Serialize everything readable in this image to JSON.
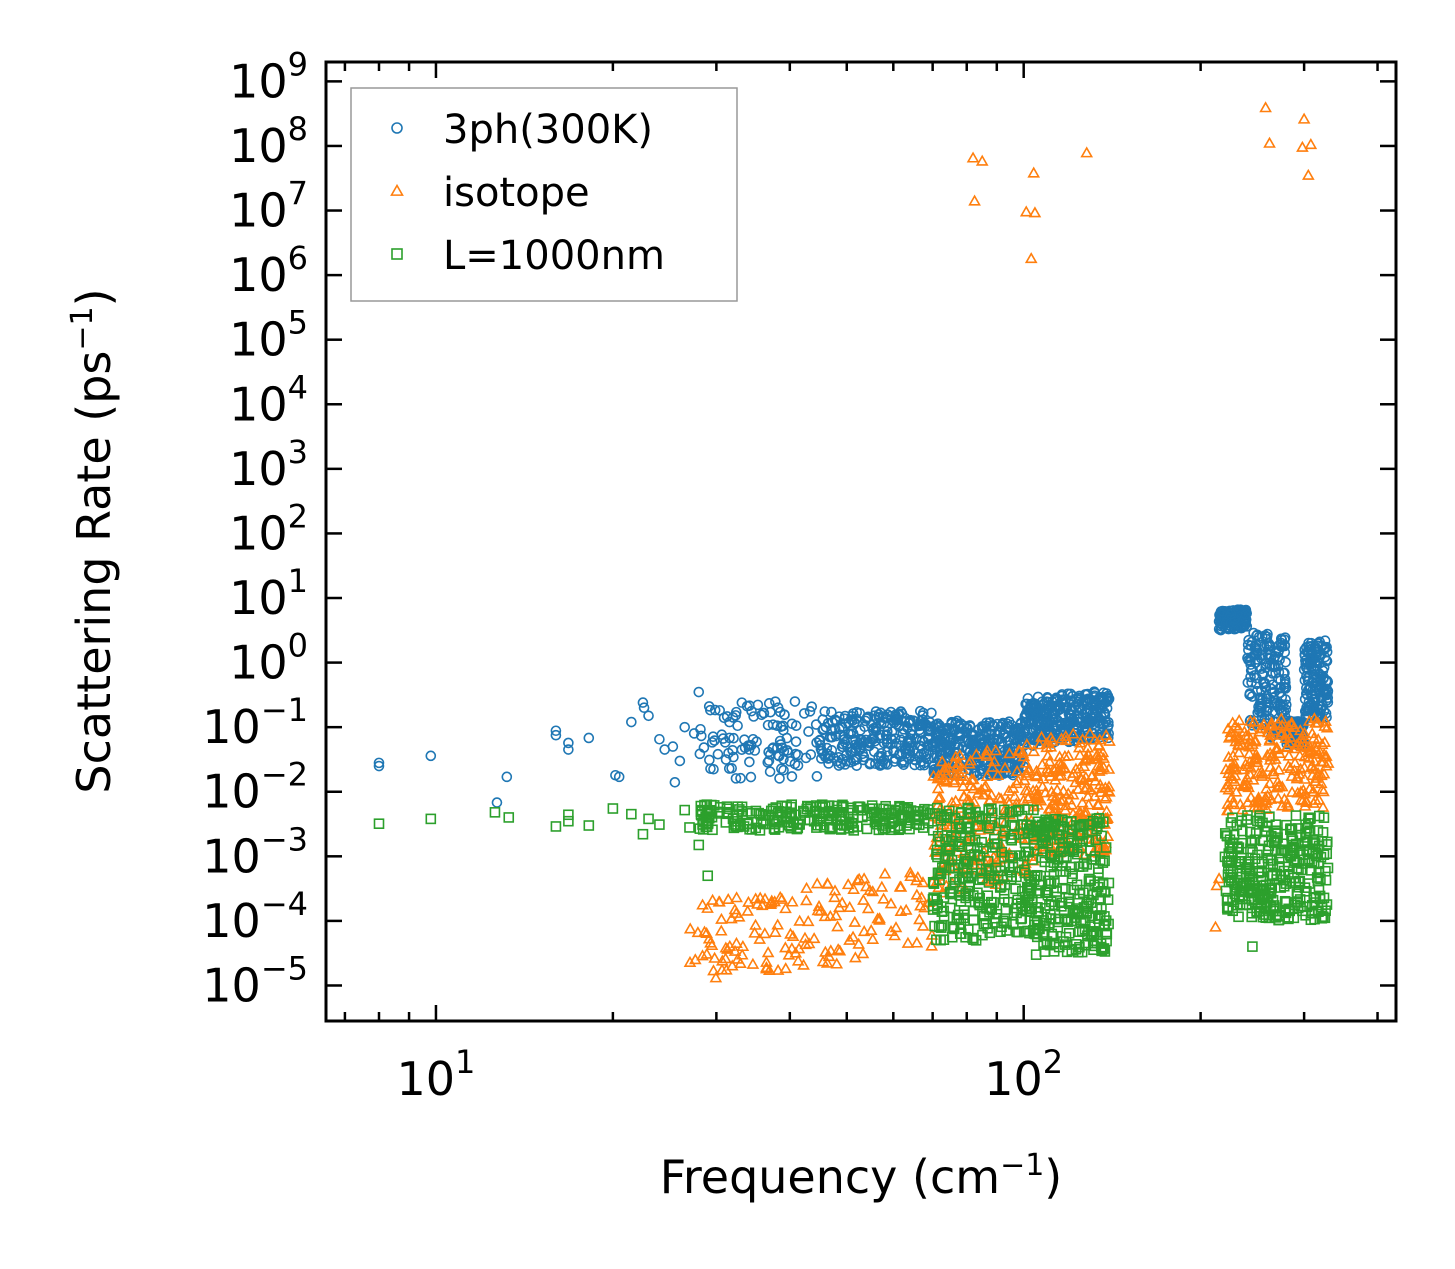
{
  "chart_data": {
    "type": "scatter",
    "title": "",
    "xlabel": "Frequency (cm",
    "xlabel_sup": "−1",
    "xlabel_end": ")",
    "ylabel": "Scattering Rate (ps",
    "ylabel_sup": "−1",
    "ylabel_end": ")",
    "xscale": "log",
    "yscale": "log",
    "xlim": [
      6.5,
      430
    ],
    "ylim_exp": [
      -5.55,
      9.3
    ],
    "x_major_ticks": [
      {
        "value": 10,
        "base": "10",
        "exp": "1"
      },
      {
        "value": 100,
        "base": "10",
        "exp": "2"
      }
    ],
    "y_major_ticks": [
      {
        "exp_value": 9,
        "base": "10",
        "exp": "9"
      },
      {
        "exp_value": 8,
        "base": "10",
        "exp": "8"
      },
      {
        "exp_value": 7,
        "base": "10",
        "exp": "7"
      },
      {
        "exp_value": 6,
        "base": "10",
        "exp": "6"
      },
      {
        "exp_value": 5,
        "base": "10",
        "exp": "5"
      },
      {
        "exp_value": 4,
        "base": "10",
        "exp": "4"
      },
      {
        "exp_value": 3,
        "base": "10",
        "exp": "3"
      },
      {
        "exp_value": 2,
        "base": "10",
        "exp": "2"
      },
      {
        "exp_value": 1,
        "base": "10",
        "exp": "1"
      },
      {
        "exp_value": 0,
        "base": "10",
        "exp": "0"
      },
      {
        "exp_value": -1,
        "base": "10",
        "exp": "−1"
      },
      {
        "exp_value": -2,
        "base": "10",
        "exp": "−2"
      },
      {
        "exp_value": -3,
        "base": "10",
        "exp": "−3"
      },
      {
        "exp_value": -4,
        "base": "10",
        "exp": "−4"
      },
      {
        "exp_value": -5,
        "base": "10",
        "exp": "−5"
      }
    ],
    "legend_position": "upper-left",
    "series": [
      {
        "name": "3ph(300K)",
        "marker": "circle",
        "color": "#1f77b4",
        "points": [
          [
            8,
            0.028
          ],
          [
            8,
            0.025
          ],
          [
            9.8,
            0.036
          ],
          [
            13.2,
            0.017
          ],
          [
            12.7,
            0.0068
          ],
          [
            16,
            0.088
          ],
          [
            16,
            0.075
          ],
          [
            16.8,
            0.057
          ],
          [
            16.8,
            0.045
          ],
          [
            18.2,
            0.068
          ],
          [
            20.2,
            0.018
          ],
          [
            20.5,
            0.017
          ],
          [
            21.5,
            0.12
          ],
          [
            22.5,
            0.24
          ],
          [
            22.6,
            0.2
          ],
          [
            23,
            0.15
          ],
          [
            24,
            0.065
          ],
          [
            24.5,
            0.045
          ],
          [
            25.3,
            0.05
          ],
          [
            25.5,
            0.014
          ],
          [
            26,
            0.03
          ],
          [
            26.5,
            0.1
          ],
          [
            28,
            0.35
          ],
          [
            27.5,
            0.08
          ]
        ],
        "bands": [
          {
            "x_from": 28,
            "x_to": 45,
            "count": 110,
            "y_lo": -1.8,
            "y_hi": -0.6,
            "slope": 0
          },
          {
            "x_from": 45,
            "x_to": 70,
            "count": 260,
            "y_lo": -1.6,
            "y_hi": -0.75,
            "slope": 0
          },
          {
            "x_from": 70,
            "x_to": 100,
            "count": 340,
            "y_lo": -1.75,
            "y_hi": -0.9,
            "slope": 0
          },
          {
            "x_from": 100,
            "x_to": 140,
            "count": 330,
            "y_lo": -1.3,
            "y_hi": -0.55,
            "slope": 0.9
          },
          {
            "x_from": 215,
            "x_to": 240,
            "count": 120,
            "y_lo": 0.5,
            "y_hi": 0.8,
            "slope": 0.6
          },
          {
            "x_from": 240,
            "x_to": 280,
            "count": 180,
            "y_lo": -1.1,
            "y_hi": 0.5,
            "slope": -1.5
          },
          {
            "x_from": 280,
            "x_to": 300,
            "count": 80,
            "y_lo": -1.3,
            "y_hi": -0.9,
            "slope": 0
          },
          {
            "x_from": 300,
            "x_to": 330,
            "count": 150,
            "y_lo": -0.9,
            "y_hi": 0.3,
            "slope": 1.2
          }
        ]
      },
      {
        "name": "isotope",
        "marker": "triangle",
        "color": "#ff7f0e",
        "points": [
          [
            82,
            65000000
          ],
          [
            85,
            58000000
          ],
          [
            82.5,
            14000000
          ],
          [
            104,
            38000000
          ],
          [
            101,
            9500000
          ],
          [
            104.5,
            9200000
          ],
          [
            103,
            1800000
          ],
          [
            128,
            78000000
          ],
          [
            258,
            390000000
          ],
          [
            262,
            110000000
          ],
          [
            300,
            260000000
          ],
          [
            298,
            95000000
          ],
          [
            308,
            105000000
          ],
          [
            305,
            35000000
          ],
          [
            212,
            8e-05
          ],
          [
            215,
            0.00045
          ],
          [
            213,
            0.00035
          ]
        ],
        "bands": [
          {
            "x_from": 27,
            "x_to": 70,
            "count": 160,
            "y_lo": -5.0,
            "y_hi": -3.7,
            "slope": 1.3
          },
          {
            "x_from": 70,
            "x_to": 105,
            "count": 220,
            "y_lo": -3.6,
            "y_hi": -1.5,
            "slope": 1.5
          },
          {
            "x_from": 105,
            "x_to": 140,
            "count": 220,
            "y_lo": -3.0,
            "y_hi": -1.1,
            "slope": 0
          },
          {
            "x_from": 220,
            "x_to": 330,
            "count": 240,
            "y_lo": -2.3,
            "y_hi": -0.9,
            "slope": 0.3
          }
        ]
      },
      {
        "name": "L=1000nm",
        "marker": "square",
        "color": "#2ca02c",
        "points": [
          [
            8,
            0.0032
          ],
          [
            9.8,
            0.0038
          ],
          [
            12.6,
            0.0048
          ],
          [
            13.3,
            0.004
          ],
          [
            16,
            0.0029
          ],
          [
            16.8,
            0.0035
          ],
          [
            16.8,
            0.0044
          ],
          [
            18.2,
            0.003
          ],
          [
            20,
            0.0055
          ],
          [
            21.5,
            0.0045
          ],
          [
            22.5,
            0.0022
          ],
          [
            23,
            0.0038
          ],
          [
            24,
            0.0031
          ],
          [
            26.5,
            0.0052
          ],
          [
            27,
            0.0028
          ],
          [
            28,
            0.0015
          ],
          [
            29,
            0.0005
          ],
          [
            245,
            4e-05
          ],
          [
            83,
            5e-05
          ],
          [
            105,
            3e-05
          ]
        ],
        "bands": [
          {
            "x_from": 28,
            "x_to": 70,
            "count": 240,
            "y_lo": -2.6,
            "y_hi": -2.2,
            "slope": 0
          },
          {
            "x_from": 70,
            "x_to": 105,
            "count": 300,
            "y_lo": -4.3,
            "y_hi": -2.25,
            "slope": 0
          },
          {
            "x_from": 105,
            "x_to": 140,
            "count": 260,
            "y_lo": -4.5,
            "y_hi": -2.4,
            "slope": 0
          },
          {
            "x_from": 220,
            "x_to": 330,
            "count": 320,
            "y_lo": -4.0,
            "y_hi": -2.35,
            "slope": 0
          }
        ]
      }
    ]
  }
}
